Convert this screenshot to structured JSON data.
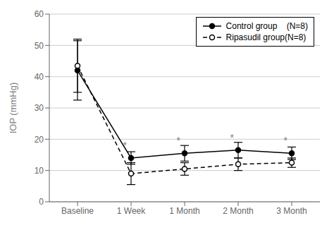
{
  "chart_data": {
    "type": "line",
    "categories": [
      "Baseline",
      "1 Week",
      "1 Month",
      "2 Month",
      "3 Month"
    ],
    "series": [
      {
        "name": "Control group    (N=8)",
        "color": "#000000",
        "marker": "circle",
        "line_style": "solid",
        "values": [
          42.0,
          14.0,
          15.5,
          16.5,
          15.5
        ],
        "error": [
          9.5,
          2.0,
          2.5,
          2.5,
          2.0
        ]
      },
      {
        "name": "Ripasudil group(N=8)",
        "color": "#000000",
        "marker": "open_circle",
        "line_style": "dashed",
        "values": [
          43.5,
          9.0,
          10.5,
          12.0,
          12.5
        ],
        "error": [
          8.5,
          3.5,
          2.0,
          2.0,
          1.5
        ]
      }
    ],
    "ylabel": "IOP (mmHg)",
    "ylim": [
      0,
      60
    ],
    "yticks": [
      0,
      10,
      20,
      30,
      40,
      50,
      60
    ],
    "grid": true,
    "legend": "upper right",
    "annotations": [
      {
        "text": "*",
        "x": "1 Week",
        "y": 17.0,
        "color": "#808080"
      },
      {
        "text": "*",
        "x": "1 Month",
        "y": 18.5,
        "color": "#808080"
      },
      {
        "text": "*",
        "x": "2 Month",
        "y": 19.5,
        "color": "#808080"
      },
      {
        "text": "*",
        "x": "3 Month",
        "y": 18.5,
        "color": "#808080"
      }
    ]
  }
}
